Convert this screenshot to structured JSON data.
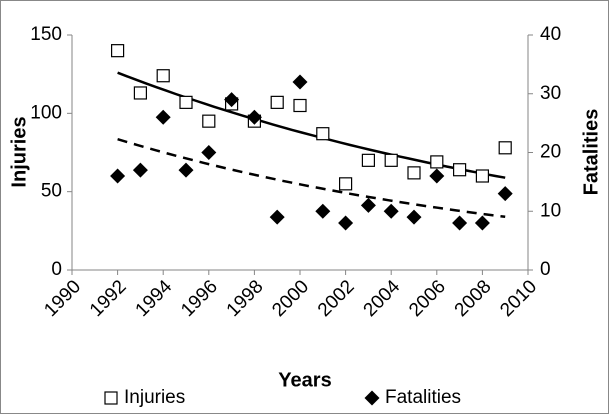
{
  "chart_data": {
    "type": "scatter",
    "x_label": "Years",
    "y_label": "Injuries",
    "y2_label": "Fatalities",
    "x": [
      1992,
      1993,
      1994,
      1995,
      1996,
      1997,
      1998,
      1999,
      2000,
      2001,
      2002,
      2003,
      2004,
      2005,
      2006,
      2007,
      2008,
      2009
    ],
    "series": [
      {
        "name": "Injuries",
        "color": "#000000",
        "marker": "square",
        "trendline": "exponential",
        "trendline_style": "solid",
        "values": [
          140,
          113,
          124,
          107,
          95,
          106,
          95,
          107,
          105,
          87,
          55,
          70,
          70,
          62,
          69,
          64,
          60,
          78
        ]
      },
      {
        "name": "Fatalities",
        "color": "#000000",
        "marker": "diamond",
        "axis": "y2",
        "trendline": "exponential",
        "trendline_style": "dashed",
        "values": [
          16,
          17,
          26,
          17,
          20,
          29,
          26,
          9,
          32,
          10,
          8,
          11,
          10,
          9,
          16,
          8,
          8,
          13
        ]
      }
    ],
    "xlim": [
      1990,
      2010
    ],
    "xticks": [
      1990,
      1992,
      1994,
      1996,
      1998,
      2000,
      2002,
      2004,
      2006,
      2008,
      2010
    ],
    "ylim": [
      0,
      150
    ],
    "yticks": [
      0,
      50,
      100,
      150
    ],
    "y2lim": [
      0,
      40
    ],
    "y2ticks": [
      0,
      10,
      20,
      30,
      40
    ],
    "grid": false,
    "legend": "bottom"
  }
}
